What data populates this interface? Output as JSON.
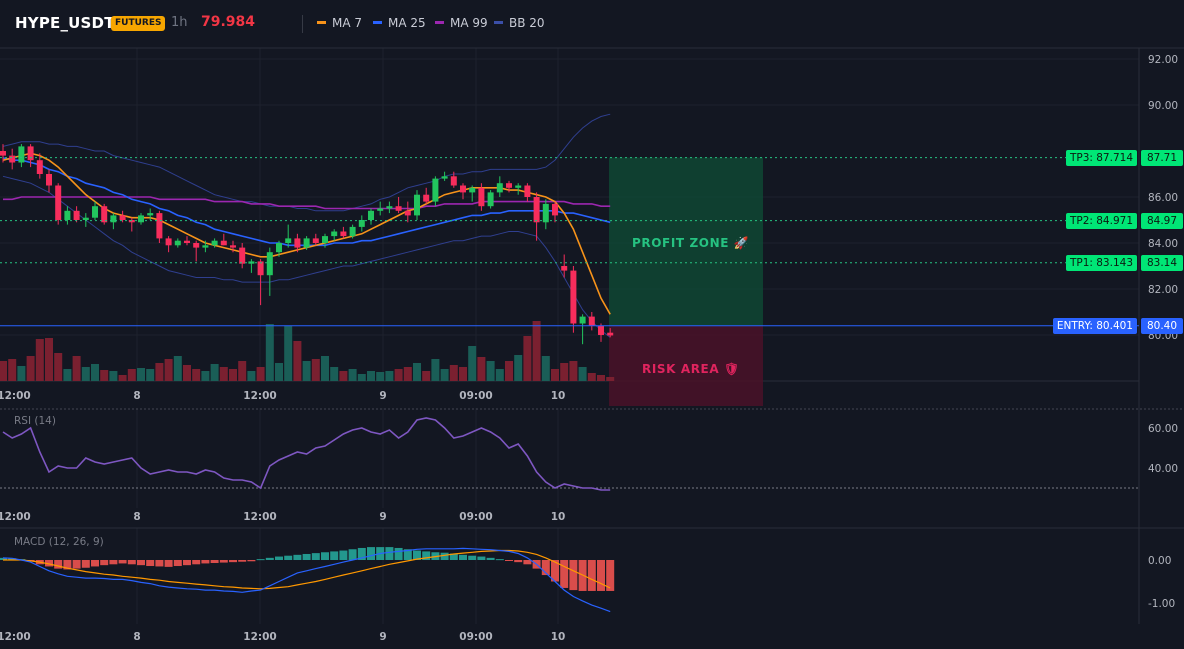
{
  "header": {
    "symbol": "HYPE_USDT",
    "badge": "FUTURES",
    "timeframe": "1h",
    "last_price": "79.984",
    "indicators": [
      {
        "label": "MA 7",
        "color": "#f7931a"
      },
      {
        "label": "MA 25",
        "color": "#2962ff"
      },
      {
        "label": "MA 99",
        "color": "#9c27b0"
      },
      {
        "label": "BB 20",
        "color": "#3b4fa8"
      }
    ]
  },
  "price_axis": {
    "ticks": [
      "92.00",
      "90.00",
      "86.00",
      "84.00",
      "82.00",
      "80.00"
    ]
  },
  "levels": {
    "tp3": {
      "tag": "TP3: 87.714",
      "axis": "87.71",
      "value": 87.714
    },
    "tp2": {
      "tag": "TP2: 84.971",
      "axis": "84.97",
      "value": 84.971
    },
    "tp1": {
      "tag": "TP1: 83.143",
      "axis": "83.14",
      "value": 83.143
    },
    "entry": {
      "tag": "ENTRY: 80.401",
      "axis": "80.40",
      "value": 80.401
    }
  },
  "zones": {
    "profit": "PROFIT ZONE 🚀",
    "risk": "RISK AREA 🛡"
  },
  "time_axis": [
    "12:00",
    "8",
    "12:00",
    "9",
    "09:00",
    "10"
  ],
  "rsi": {
    "title": "RSI (14)",
    "ticks": [
      "60.00",
      "40.00"
    ]
  },
  "macd": {
    "title": "MACD (12, 26, 9)",
    "ticks": [
      "0.00",
      "-1.00"
    ]
  },
  "colors": {
    "up": "#26a69a",
    "down": "#f23645",
    "grid": "#1e222d",
    "bg": "#131722"
  },
  "chart_data": {
    "type": "candlestick",
    "candles": [
      [
        88.0,
        88.3,
        87.5,
        87.8
      ],
      [
        87.8,
        88.1,
        87.2,
        87.5
      ],
      [
        87.5,
        88.3,
        87.3,
        88.2
      ],
      [
        88.2,
        88.3,
        87.3,
        87.6
      ],
      [
        87.6,
        87.9,
        86.8,
        87.0
      ],
      [
        87.0,
        87.2,
        86.2,
        86.5
      ],
      [
        86.5,
        86.6,
        84.8,
        85.0
      ],
      [
        85.0,
        85.6,
        84.8,
        85.4
      ],
      [
        85.4,
        85.6,
        84.9,
        85.0
      ],
      [
        85.0,
        85.3,
        84.7,
        85.1
      ],
      [
        85.1,
        85.8,
        85.0,
        85.6
      ],
      [
        85.6,
        85.7,
        84.8,
        84.9
      ],
      [
        84.9,
        85.3,
        84.6,
        85.2
      ],
      [
        85.2,
        85.4,
        84.9,
        85.0
      ],
      [
        85.0,
        85.1,
        84.5,
        84.9
      ],
      [
        84.9,
        85.3,
        84.8,
        85.2
      ],
      [
        85.2,
        85.5,
        85.0,
        85.3
      ],
      [
        85.3,
        85.4,
        84.0,
        84.2
      ],
      [
        84.2,
        84.3,
        83.6,
        83.9
      ],
      [
        83.9,
        84.2,
        83.8,
        84.1
      ],
      [
        84.1,
        84.3,
        83.9,
        84.0
      ],
      [
        84.0,
        84.1,
        83.2,
        83.8
      ],
      [
        83.8,
        84.1,
        83.6,
        83.9
      ],
      [
        83.9,
        84.2,
        83.8,
        84.1
      ],
      [
        84.1,
        84.4,
        83.9,
        83.9
      ],
      [
        83.9,
        84.1,
        83.6,
        83.8
      ],
      [
        83.8,
        84.0,
        82.9,
        83.1
      ],
      [
        83.1,
        83.3,
        82.7,
        83.2
      ],
      [
        83.2,
        83.3,
        81.3,
        82.6
      ],
      [
        82.6,
        83.8,
        81.7,
        83.6
      ],
      [
        83.6,
        84.1,
        83.4,
        84.0
      ],
      [
        84.0,
        84.8,
        83.8,
        84.2
      ],
      [
        84.2,
        84.4,
        83.6,
        83.8
      ],
      [
        83.8,
        84.3,
        83.7,
        84.2
      ],
      [
        84.2,
        84.4,
        83.9,
        84.0
      ],
      [
        84.0,
        84.4,
        83.8,
        84.3
      ],
      [
        84.3,
        84.6,
        84.1,
        84.5
      ],
      [
        84.5,
        84.7,
        84.2,
        84.3
      ],
      [
        84.3,
        84.8,
        84.2,
        84.7
      ],
      [
        84.7,
        85.2,
        84.5,
        85.0
      ],
      [
        85.0,
        85.5,
        84.8,
        85.4
      ],
      [
        85.4,
        85.8,
        85.2,
        85.5
      ],
      [
        85.5,
        85.8,
        85.3,
        85.6
      ],
      [
        85.6,
        86.0,
        85.3,
        85.4
      ],
      [
        85.4,
        85.8,
        84.9,
        85.2
      ],
      [
        85.2,
        86.3,
        85.0,
        86.1
      ],
      [
        86.1,
        86.4,
        85.7,
        85.8
      ],
      [
        85.8,
        86.9,
        85.6,
        86.8
      ],
      [
        86.8,
        87.1,
        86.7,
        86.9
      ],
      [
        86.9,
        87.1,
        86.4,
        86.5
      ],
      [
        86.5,
        86.6,
        85.9,
        86.2
      ],
      [
        86.2,
        86.5,
        85.8,
        86.4
      ],
      [
        86.4,
        86.6,
        85.4,
        85.6
      ],
      [
        85.6,
        86.3,
        85.5,
        86.2
      ],
      [
        86.2,
        86.9,
        86.0,
        86.6
      ],
      [
        86.6,
        86.7,
        86.2,
        86.4
      ],
      [
        86.4,
        86.6,
        86.1,
        86.5
      ],
      [
        86.5,
        86.6,
        85.8,
        86.0
      ],
      [
        86.0,
        86.2,
        84.1,
        84.9
      ],
      [
        84.9,
        85.9,
        84.6,
        85.7
      ],
      [
        85.7,
        85.8,
        84.9,
        85.2
      ],
      [
        83.0,
        83.5,
        82.5,
        82.8
      ],
      [
        82.8,
        83.0,
        80.1,
        80.5
      ],
      [
        80.5,
        80.9,
        79.6,
        80.8
      ],
      [
        80.8,
        81.0,
        80.2,
        80.4
      ],
      [
        80.4,
        80.5,
        79.7,
        80.0
      ],
      [
        80.1,
        80.3,
        79.9,
        79.98
      ]
    ],
    "ma7": [
      87.6,
      87.7,
      87.8,
      87.9,
      87.8,
      87.6,
      87.3,
      86.9,
      86.5,
      86.1,
      85.8,
      85.5,
      85.3,
      85.2,
      85.1,
      85.1,
      85.1,
      85.0,
      84.8,
      84.6,
      84.4,
      84.2,
      84.0,
      83.9,
      83.8,
      83.7,
      83.6,
      83.5,
      83.4,
      83.4,
      83.5,
      83.6,
      83.7,
      83.8,
      83.9,
      84.0,
      84.1,
      84.2,
      84.3,
      84.4,
      84.6,
      84.8,
      85.0,
      85.2,
      85.4,
      85.5,
      85.7,
      85.9,
      86.1,
      86.2,
      86.3,
      86.4,
      86.4,
      86.4,
      86.4,
      86.3,
      86.3,
      86.2,
      86.1,
      86.0,
      85.8,
      85.3,
      84.6,
      83.6,
      82.6,
      81.6,
      80.9
    ],
    "ma25": [
      87.7,
      87.6,
      87.6,
      87.5,
      87.4,
      87.2,
      87.1,
      86.9,
      86.8,
      86.6,
      86.5,
      86.4,
      86.2,
      86.1,
      85.9,
      85.8,
      85.7,
      85.5,
      85.4,
      85.2,
      85.1,
      84.9,
      84.8,
      84.6,
      84.5,
      84.4,
      84.3,
      84.2,
      84.1,
      84.0,
      84.0,
      83.9,
      83.9,
      83.9,
      83.9,
      83.9,
      84.0,
      84.0,
      84.0,
      84.1,
      84.1,
      84.2,
      84.3,
      84.4,
      84.5,
      84.6,
      84.7,
      84.8,
      84.9,
      85.0,
      85.1,
      85.2,
      85.2,
      85.3,
      85.3,
      85.4,
      85.4,
      85.4,
      85.4,
      85.4,
      85.4,
      85.3,
      85.3,
      85.2,
      85.1,
      85.0,
      84.9
    ],
    "ma99": [
      85.9,
      85.9,
      86.0,
      86.0,
      86.0,
      86.0,
      86.0,
      86.0,
      86.0,
      86.0,
      86.0,
      86.0,
      86.0,
      86.0,
      86.0,
      86.0,
      86.0,
      85.9,
      85.9,
      85.9,
      85.9,
      85.9,
      85.9,
      85.8,
      85.8,
      85.8,
      85.8,
      85.7,
      85.7,
      85.7,
      85.6,
      85.6,
      85.6,
      85.6,
      85.6,
      85.5,
      85.5,
      85.5,
      85.5,
      85.5,
      85.5,
      85.5,
      85.5,
      85.5,
      85.5,
      85.5,
      85.6,
      85.6,
      85.7,
      85.7,
      85.7,
      85.7,
      85.8,
      85.8,
      85.8,
      85.8,
      85.8,
      85.8,
      85.8,
      85.8,
      85.8,
      85.8,
      85.7,
      85.7,
      85.7,
      85.6,
      85.6
    ],
    "bb_upper": [
      88.2,
      88.3,
      88.4,
      88.4,
      88.4,
      88.3,
      88.3,
      88.2,
      88.2,
      88.1,
      88.0,
      88.0,
      87.8,
      87.7,
      87.6,
      87.5,
      87.4,
      87.3,
      87.1,
      86.9,
      86.7,
      86.5,
      86.3,
      86.1,
      86.0,
      85.9,
      85.8,
      85.8,
      85.7,
      85.6,
      85.6,
      85.6,
      85.5,
      85.5,
      85.4,
      85.4,
      85.4,
      85.4,
      85.5,
      85.6,
      85.7,
      85.9,
      86.0,
      86.2,
      86.4,
      86.5,
      86.6,
      86.7,
      86.9,
      87.0,
      87.0,
      87.1,
      87.1,
      87.2,
      87.2,
      87.2,
      87.2,
      87.2,
      87.2,
      87.3,
      87.6,
      88.1,
      88.6,
      89.0,
      89.3,
      89.5,
      89.6
    ],
    "bb_lower": [
      86.9,
      86.8,
      86.7,
      86.6,
      86.4,
      86.2,
      85.9,
      85.6,
      85.3,
      85.0,
      84.7,
      84.4,
      84.1,
      83.9,
      83.6,
      83.4,
      83.2,
      83.0,
      82.8,
      82.7,
      82.6,
      82.5,
      82.5,
      82.5,
      82.4,
      82.4,
      82.3,
      82.3,
      82.3,
      82.3,
      82.4,
      82.4,
      82.5,
      82.6,
      82.7,
      82.8,
      82.9,
      83.0,
      83.0,
      83.1,
      83.2,
      83.3,
      83.4,
      83.5,
      83.6,
      83.7,
      83.8,
      83.9,
      84.0,
      84.1,
      84.1,
      84.2,
      84.3,
      84.3,
      84.4,
      84.5,
      84.5,
      84.4,
      84.3,
      83.8,
      83.2,
      82.5,
      81.8,
      81.1,
      80.6,
      80.2,
      79.9
    ],
    "volume": [
      20,
      22,
      15,
      25,
      42,
      43,
      28,
      12,
      25,
      14,
      17,
      11,
      10,
      6,
      12,
      13,
      12,
      18,
      22,
      25,
      16,
      12,
      10,
      17,
      14,
      12,
      20,
      10,
      14,
      57,
      18,
      55,
      40,
      20,
      22,
      25,
      14,
      10,
      12,
      7,
      10,
      9,
      10,
      12,
      14,
      18,
      10,
      22,
      12,
      16,
      14,
      35,
      24,
      20,
      12,
      20,
      26,
      45,
      60,
      25,
      12,
      18,
      20,
      14,
      8,
      6,
      4
    ],
    "rsi": [
      58,
      55,
      57,
      60,
      48,
      38,
      41,
      40,
      40,
      45,
      43,
      42,
      43,
      44,
      45,
      40,
      37,
      38,
      39,
      38,
      38,
      37,
      39,
      38,
      35,
      34,
      34,
      33,
      30,
      41,
      44,
      46,
      48,
      47,
      50,
      51,
      54,
      57,
      59,
      60,
      58,
      57,
      59,
      55,
      58,
      64,
      65,
      64,
      60,
      55,
      56,
      58,
      60,
      58,
      55,
      50,
      52,
      46,
      38,
      33,
      30,
      32,
      31,
      30,
      30,
      29,
      29
    ],
    "macd_hist": [
      0.05,
      0.04,
      0.02,
      -0.02,
      -0.1,
      -0.15,
      -0.2,
      -0.22,
      -0.2,
      -0.18,
      -0.15,
      -0.12,
      -0.1,
      -0.08,
      -0.1,
      -0.12,
      -0.14,
      -0.15,
      -0.16,
      -0.14,
      -0.12,
      -0.1,
      -0.08,
      -0.07,
      -0.06,
      -0.05,
      -0.04,
      -0.03,
      0.02,
      0.05,
      0.08,
      0.1,
      0.12,
      0.14,
      0.16,
      0.18,
      0.2,
      0.22,
      0.25,
      0.28,
      0.3,
      0.3,
      0.3,
      0.28,
      0.25,
      0.22,
      0.2,
      0.18,
      0.17,
      0.15,
      0.12,
      0.1,
      0.08,
      0.05,
      0.02,
      -0.02,
      -0.05,
      -0.1,
      -0.2,
      -0.35,
      -0.5,
      -0.65,
      -0.7,
      -0.72,
      -0.72,
      -0.72,
      -0.72
    ],
    "macd_line": [
      0.05,
      0.04,
      0.0,
      -0.05,
      -0.15,
      -0.25,
      -0.32,
      -0.38,
      -0.4,
      -0.42,
      -0.42,
      -0.43,
      -0.45,
      -0.45,
      -0.48,
      -0.52,
      -0.55,
      -0.6,
      -0.63,
      -0.65,
      -0.67,
      -0.68,
      -0.7,
      -0.7,
      -0.72,
      -0.73,
      -0.75,
      -0.72,
      -0.7,
      -0.6,
      -0.5,
      -0.4,
      -0.3,
      -0.25,
      -0.2,
      -0.15,
      -0.1,
      -0.05,
      0.0,
      0.05,
      0.1,
      0.15,
      0.18,
      0.2,
      0.22,
      0.25,
      0.26,
      0.26,
      0.26,
      0.26,
      0.27,
      0.26,
      0.25,
      0.24,
      0.22,
      0.2,
      0.15,
      0.05,
      -0.1,
      -0.3,
      -0.5,
      -0.7,
      -0.85,
      -0.95,
      -1.05,
      -1.12,
      -1.2
    ],
    "macd_signal": [
      0.0,
      0.0,
      0.0,
      -0.02,
      -0.05,
      -0.09,
      -0.14,
      -0.19,
      -0.23,
      -0.27,
      -0.3,
      -0.33,
      -0.35,
      -0.38,
      -0.4,
      -0.42,
      -0.45,
      -0.47,
      -0.5,
      -0.52,
      -0.54,
      -0.56,
      -0.58,
      -0.6,
      -0.62,
      -0.63,
      -0.65,
      -0.66,
      -0.67,
      -0.66,
      -0.64,
      -0.62,
      -0.58,
      -0.54,
      -0.5,
      -0.45,
      -0.4,
      -0.35,
      -0.3,
      -0.25,
      -0.2,
      -0.15,
      -0.1,
      -0.06,
      -0.02,
      0.02,
      0.05,
      0.08,
      0.11,
      0.14,
      0.16,
      0.18,
      0.2,
      0.21,
      0.22,
      0.22,
      0.21,
      0.18,
      0.13,
      0.05,
      -0.05,
      -0.15,
      -0.25,
      -0.35,
      -0.45,
      -0.55,
      -0.65
    ]
  }
}
